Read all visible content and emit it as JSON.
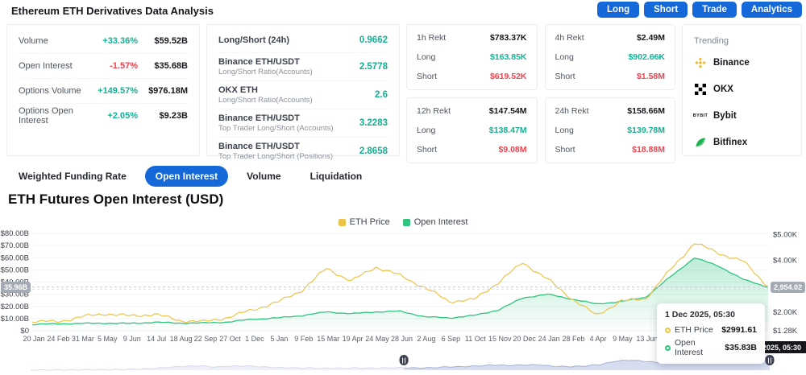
{
  "header": {
    "title": "Ethereum ETH Derivatives Data Analysis",
    "buttons": [
      {
        "label": "Long"
      },
      {
        "label": "Short"
      },
      {
        "label": "Trade"
      },
      {
        "label": "Analytics"
      }
    ]
  },
  "colors": {
    "accent_blue": "#1568d9",
    "positive_green": "#14b093",
    "negative_red": "#f0424e",
    "price_gold": "#edc44a",
    "oi_green": "#2ec47e",
    "navigator_fill": "#ccd4ed",
    "badge_gray": "#a4abb5"
  },
  "stats_card": {
    "rows": [
      {
        "label": "Volume",
        "change": "+33.36%",
        "dir": "pos",
        "value": "$59.52B"
      },
      {
        "label": "Open Interest",
        "change": "-1.57%",
        "dir": "neg",
        "value": "$35.68B"
      },
      {
        "label": "Options Volume",
        "change": "+149.57%",
        "dir": "pos",
        "value": "$976.18M"
      },
      {
        "label": "Options Open Interest",
        "change": "+2.05%",
        "dir": "pos",
        "value": "$9.23B"
      }
    ]
  },
  "ratio_card": {
    "rows": [
      {
        "label": "Long/Short (24h)",
        "sublabel": "",
        "value": "0.9662"
      },
      {
        "label": "Binance ETH/USDT",
        "sublabel": "Long/Short Ratio(Accounts)",
        "value": "2.5778"
      },
      {
        "label": "OKX ETH",
        "sublabel": "Long/Short Ratio(Accounts)",
        "value": "2.6"
      },
      {
        "label": "Binance ETH/USDT",
        "sublabel": "Top Trader Long/Short (Accounts)",
        "value": "3.2283"
      },
      {
        "label": "Binance ETH/USDT",
        "sublabel": "Top Trader Long/Short (Positions)",
        "value": "2.8658"
      }
    ]
  },
  "rekt_cards": [
    {
      "title": "1h Rekt",
      "total": "$783.37K",
      "long_label": "Long",
      "long": "$163.85K",
      "short_label": "Short",
      "short": "$619.52K"
    },
    {
      "title": "4h Rekt",
      "total": "$2.49M",
      "long_label": "Long",
      "long": "$902.66K",
      "short_label": "Short",
      "short": "$1.58M"
    },
    {
      "title": "12h Rekt",
      "total": "$147.54M",
      "long_label": "Long",
      "long": "$138.47M",
      "short_label": "Short",
      "short": "$9.08M"
    },
    {
      "title": "24h Rekt",
      "total": "$158.66M",
      "long_label": "Long",
      "long": "$139.78M",
      "short_label": "Short",
      "short": "$18.88M"
    }
  ],
  "trending": {
    "title": "Trending",
    "items": [
      {
        "name": "Binance",
        "icon": "binance-icon"
      },
      {
        "name": "OKX",
        "icon": "okx-icon"
      },
      {
        "name": "Bybit",
        "icon": "bybit-icon"
      },
      {
        "name": "Bitfinex",
        "icon": "bitfinex-icon"
      }
    ]
  },
  "tabs": [
    {
      "label": "Weighted Funding Rate",
      "active": false
    },
    {
      "label": "Open Interest",
      "active": true
    },
    {
      "label": "Volume",
      "active": false
    },
    {
      "label": "Liquidation",
      "active": false
    }
  ],
  "chart_section": {
    "title": "ETH Futures Open Interest (USD)"
  },
  "chart_data": {
    "type": "line",
    "title": "ETH Futures Open Interest (USD)",
    "x_tick_labels": [
      "20 Jan",
      "24 Feb",
      "31 Mar",
      "5 May",
      "9 Jun",
      "14 Jul",
      "18 Aug",
      "22 Sep",
      "27 Oct",
      "1 Dec",
      "5 Jan",
      "9 Feb",
      "15 Mar",
      "19 Apr",
      "24 May",
      "28 Jun",
      "2 Aug",
      "6 Sep",
      "11 Oct",
      "15 Nov",
      "20 Dec",
      "24 Jan",
      "28 Feb",
      "4 Apr",
      "9 May",
      "13 Jun"
    ],
    "x_range": "20 Jan 2023 to 1 Dec 2025",
    "legend_position": "top-center",
    "grid": true,
    "series": [
      {
        "name": "ETH Price",
        "axis": "right",
        "unit": "K USD",
        "color": "#edc44a",
        "values": [
          1.65,
          1.62,
          1.82,
          1.94,
          1.85,
          1.92,
          1.68,
          1.63,
          1.8,
          2.1,
          2.38,
          2.85,
          3.7,
          3.2,
          3.75,
          3.42,
          2.95,
          2.42,
          2.48,
          3.15,
          3.92,
          3.28,
          2.52,
          1.88,
          2.42,
          2.52,
          3.62,
          4.68,
          4.28,
          3.96,
          2.99
        ]
      },
      {
        "name": "Open Interest",
        "axis": "left",
        "unit": "B USD",
        "color": "#2ec47e",
        "fill": true,
        "values": [
          5.2,
          5.6,
          6.0,
          6.2,
          6.0,
          7.0,
          6.3,
          6.4,
          7.2,
          9.5,
          10.5,
          12.5,
          15.5,
          14.0,
          15.5,
          16.0,
          11.5,
          10.5,
          12.5,
          17.0,
          27.0,
          30.0,
          26.0,
          22.0,
          24.0,
          27.5,
          44.0,
          60.0,
          53.0,
          42.0,
          35.83
        ]
      }
    ],
    "left_axis": {
      "ticks": [
        "$80.00B",
        "$70.00B",
        "$60.00B",
        "$50.00B",
        "$40.00B",
        "$30.00B",
        "$20.00B",
        "$10.00B",
        "$0"
      ],
      "min": 0,
      "max": 80,
      "current_value": 35.96,
      "current_badge": "35.96B"
    },
    "right_axis": {
      "ticks": [
        "$5.00K",
        "$4.00K",
        "$3.00K",
        "$2.00K",
        "$1.28K"
      ],
      "tick_values": [
        5.0,
        4.0,
        3.0,
        2.0,
        1.28
      ],
      "min": 1.28,
      "max": 5.05,
      "current_value": 2.954,
      "current_badge": "2,954.02"
    },
    "tooltip": {
      "header": "1 Dec 2025, 05:30",
      "rows": [
        {
          "label": "ETH Price",
          "value": "$2991.61",
          "color": "#edc44a"
        },
        {
          "label": "Open Interest",
          "value": "$35.83B",
          "color": "#2ec47e"
        }
      ]
    },
    "crosshair_label": "1 Dec 2025, 05:30",
    "navigator": {
      "values": [
        0.5,
        0.6,
        0.8,
        1.0,
        1.2,
        1.6,
        2.2,
        3.2,
        5.5,
        8.5,
        11.5,
        13.0,
        9.5,
        12.0,
        13.0,
        10.0,
        8.0,
        7.0,
        6.5,
        5.8,
        6.0,
        6.5,
        6.1,
        7.0,
        7.5,
        6.6,
        7.2,
        9.5,
        10.5,
        12.5,
        15.5,
        14.0,
        15.5,
        16.0,
        11.5,
        10.5,
        12.5,
        17.0,
        27.0,
        30.0,
        26.0,
        22.0,
        24.0,
        27.5,
        44.0,
        60.0,
        53.0,
        42.0,
        36.0
      ],
      "selection_start_frac": 0.505,
      "selection_end_frac": 1.0
    }
  }
}
